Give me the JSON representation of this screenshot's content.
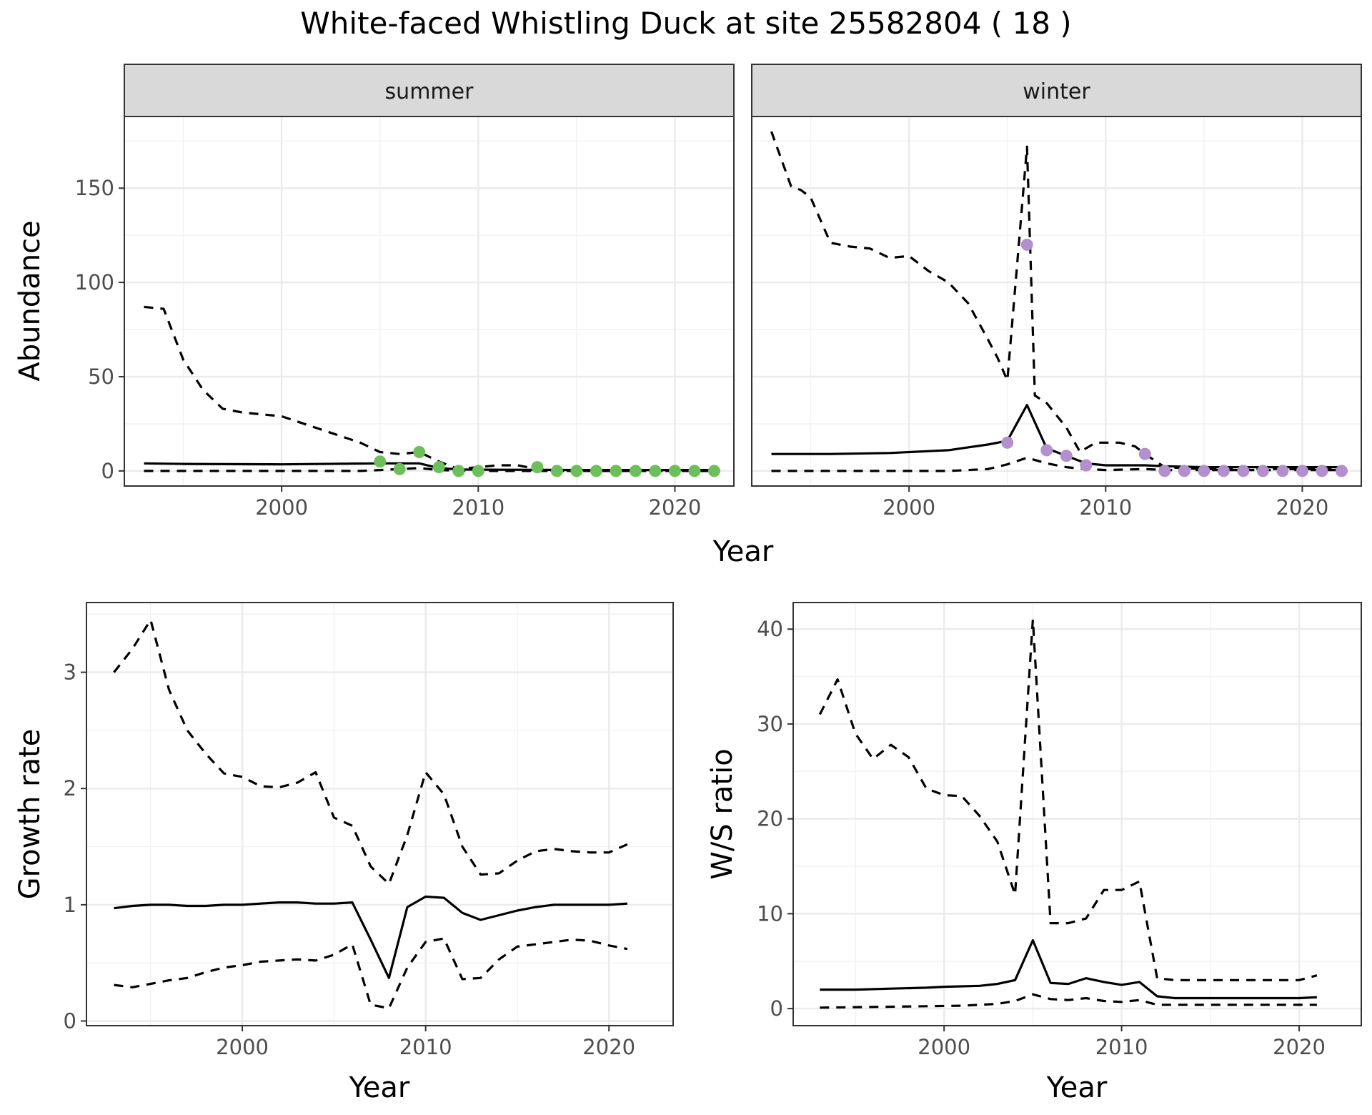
{
  "figure": {
    "title": "White-faced Whistling Duck at site 25582804 ( 18 )"
  },
  "colors": {
    "summer_points": "#6dbf5b",
    "winter_points": "#b38fcd",
    "line": "#000000",
    "strip_fill": "#d9d9d9",
    "grid": "#ebebeb"
  },
  "chart_data": [
    {
      "type": "line",
      "panel": "summer",
      "strip_label": "summer",
      "xlabel": "Year",
      "ylabel": "Abundance",
      "xlim": [
        1992,
        2023
      ],
      "ylim": [
        -8,
        188
      ],
      "xticks": [
        2000,
        2010,
        2020
      ],
      "yticks": [
        0,
        50,
        100,
        150
      ],
      "series": [
        {
          "style": "solid",
          "x": [
            1993,
            1995,
            2000,
            2005,
            2007,
            2008,
            2009,
            2010,
            2013,
            2015,
            2020,
            2022
          ],
          "y": [
            4,
            3.7,
            3.5,
            4,
            4,
            1.5,
            0.8,
            0.7,
            0.6,
            0.5,
            0.5,
            0.5
          ]
        },
        {
          "style": "dashed",
          "x": [
            1993,
            1994,
            1995,
            1996,
            1997,
            1998,
            2000,
            2002,
            2004,
            2005,
            2006,
            2007,
            2008,
            2009,
            2010,
            2011,
            2012,
            2013,
            2014,
            2015,
            2020,
            2022
          ],
          "y": [
            87,
            86,
            59,
            43,
            33,
            31,
            29,
            22,
            15,
            10,
            9,
            10,
            5,
            1,
            2,
            3,
            3,
            1,
            0,
            0,
            0,
            0
          ]
        },
        {
          "style": "dashed",
          "x": [
            1993,
            2000,
            2004,
            2005,
            2006,
            2007,
            2008,
            2009,
            2010,
            2013,
            2015,
            2020,
            2022
          ],
          "y": [
            0,
            0,
            0,
            0.5,
            1,
            1.5,
            0.5,
            0.2,
            0,
            0,
            0,
            0,
            0
          ]
        }
      ],
      "points": {
        "x": [
          2005,
          2006,
          2007,
          2008,
          2009,
          2010,
          2013,
          2014,
          2015,
          2016,
          2017,
          2018,
          2019,
          2020,
          2021,
          2022
        ],
        "y": [
          5,
          1,
          10,
          2,
          0,
          0,
          2,
          0,
          0,
          0,
          0,
          0,
          0,
          0,
          0,
          0
        ]
      }
    },
    {
      "type": "line",
      "panel": "winter",
      "strip_label": "winter",
      "xlabel": "Year",
      "ylabel": "Abundance",
      "xlim": [
        1992,
        2023
      ],
      "ylim": [
        -8,
        188
      ],
      "xticks": [
        2000,
        2010,
        2020
      ],
      "yticks": [
        0,
        50,
        100,
        150
      ],
      "series": [
        {
          "style": "solid",
          "x": [
            1993,
            1996,
            1999,
            2001,
            2002,
            2003,
            2004,
            2005,
            2006,
            2007,
            2008,
            2009,
            2010,
            2011,
            2012,
            2013,
            2015,
            2020,
            2022
          ],
          "y": [
            9,
            9,
            9.5,
            10.5,
            11,
            12.5,
            14,
            16,
            35,
            12,
            8,
            4,
            3,
            3,
            3,
            2.5,
            2,
            2,
            2
          ]
        },
        {
          "style": "dashed",
          "x": [
            1993,
            1994,
            1994.5,
            1995,
            1996,
            1997,
            1998,
            1999,
            2000,
            2001,
            2002,
            2003,
            2004,
            2004.5,
            2005,
            2005.5,
            2006,
            2006.4,
            2007,
            2008,
            2008.7,
            2009,
            2009.5,
            2010,
            2010.7,
            2011.5,
            2012,
            2013,
            2015,
            2020,
            2022
          ],
          "y": [
            180,
            151,
            149,
            145,
            121,
            119,
            118,
            113,
            114,
            106,
            100,
            89,
            70,
            60,
            48,
            110,
            172,
            40,
            36,
            23,
            10,
            12,
            15,
            15,
            15,
            13,
            9,
            2,
            1,
            1,
            1
          ]
        },
        {
          "style": "dashed",
          "x": [
            1993,
            2000,
            2002,
            2003,
            2004,
            2005,
            2006,
            2007,
            2008,
            2009,
            2010,
            2012,
            2013,
            2015,
            2020,
            2022
          ],
          "y": [
            0,
            0,
            0,
            0.5,
            1,
            3.5,
            7,
            4,
            2,
            1,
            0.5,
            1,
            0.5,
            0.5,
            0.5,
            0.5
          ]
        }
      ],
      "points": {
        "x": [
          2005,
          2006,
          2007,
          2008,
          2009,
          2012,
          2013,
          2014,
          2015,
          2016,
          2017,
          2018,
          2019,
          2020,
          2021,
          2022
        ],
        "y": [
          15,
          120,
          11,
          8,
          3,
          9,
          0,
          0,
          0,
          0,
          0,
          0,
          0,
          0,
          0,
          0
        ]
      }
    },
    {
      "type": "line",
      "panel": "growth",
      "xlabel": "Year",
      "ylabel": "Growth rate",
      "xlim": [
        1991.5,
        2023.5
      ],
      "ylim": [
        -0.04,
        3.6
      ],
      "xticks": [
        2000,
        2010,
        2020
      ],
      "yticks": [
        0,
        1,
        2,
        3
      ],
      "series": [
        {
          "style": "solid",
          "x": [
            1993,
            1994,
            1995,
            1996,
            1997,
            1998,
            1999,
            2000,
            2001,
            2002,
            2003,
            2004,
            2005,
            2006,
            2007,
            2008,
            2009,
            2010,
            2011,
            2012,
            2013,
            2014,
            2015,
            2016,
            2017,
            2018,
            2019,
            2020,
            2021
          ],
          "y": [
            0.97,
            0.99,
            1.0,
            1.0,
            0.99,
            0.99,
            1.0,
            1.0,
            1.01,
            1.02,
            1.02,
            1.01,
            1.01,
            1.02,
            0.7,
            0.37,
            0.98,
            1.07,
            1.06,
            0.93,
            0.87,
            0.91,
            0.95,
            0.98,
            1.0,
            1.0,
            1.0,
            1.0,
            1.01
          ]
        },
        {
          "style": "dashed",
          "x": [
            1993,
            1994,
            1995,
            1996,
            1997,
            1998,
            1999,
            2000,
            2001,
            2002,
            2003,
            2004,
            2005,
            2006,
            2007,
            2008,
            2009,
            2010,
            2011,
            2012,
            2013,
            2014,
            2015,
            2016,
            2017,
            2018,
            2019,
            2020,
            2021
          ],
          "y": [
            3.0,
            3.2,
            3.45,
            2.85,
            2.5,
            2.3,
            2.13,
            2.1,
            2.02,
            2.01,
            2.05,
            2.14,
            1.75,
            1.68,
            1.33,
            1.18,
            1.6,
            2.14,
            1.95,
            1.5,
            1.26,
            1.27,
            1.38,
            1.46,
            1.48,
            1.46,
            1.45,
            1.45,
            1.52
          ]
        },
        {
          "style": "dashed",
          "x": [
            1993,
            1994,
            1995,
            1996,
            1997,
            1998,
            1999,
            2000,
            2001,
            2002,
            2003,
            2004,
            2005,
            2006,
            2007,
            2008,
            2009,
            2010,
            2011,
            2012,
            2013,
            2014,
            2015,
            2016,
            2017,
            2018,
            2019,
            2020,
            2021
          ],
          "y": [
            0.31,
            0.29,
            0.32,
            0.35,
            0.37,
            0.42,
            0.46,
            0.48,
            0.51,
            0.52,
            0.53,
            0.52,
            0.57,
            0.66,
            0.14,
            0.11,
            0.46,
            0.68,
            0.71,
            0.36,
            0.37,
            0.53,
            0.64,
            0.66,
            0.68,
            0.7,
            0.69,
            0.65,
            0.62
          ]
        }
      ]
    },
    {
      "type": "line",
      "panel": "ws_ratio",
      "xlabel": "Year",
      "ylabel": "W/S ratio",
      "xlim": [
        1991.5,
        2023.5
      ],
      "ylim": [
        -1.8,
        42.8
      ],
      "xticks": [
        2000,
        2010,
        2020
      ],
      "yticks": [
        0,
        10,
        20,
        30,
        40
      ],
      "series": [
        {
          "style": "solid",
          "x": [
            1993,
            1995,
            1997,
            1999,
            2000,
            2002,
            2003,
            2004,
            2005,
            2006,
            2007,
            2008,
            2009,
            2010,
            2011,
            2012,
            2013,
            2015,
            2020,
            2021
          ],
          "y": [
            2,
            2,
            2.1,
            2.2,
            2.3,
            2.4,
            2.6,
            3,
            7.2,
            2.7,
            2.6,
            3.2,
            2.8,
            2.5,
            2.8,
            1.3,
            1.1,
            1.1,
            1.1,
            1.2
          ]
        },
        {
          "style": "dashed",
          "x": [
            1993,
            1994,
            1995,
            1996,
            1997,
            1998,
            1999,
            2000,
            2001,
            2002,
            2003,
            2004,
            2005,
            2006,
            2007,
            2008,
            2009,
            2010,
            2011,
            2012,
            2013,
            2015,
            2020,
            2021
          ],
          "y": [
            31,
            34.7,
            29,
            26.3,
            27.8,
            26.5,
            23.2,
            22.5,
            22.4,
            20.3,
            17.6,
            12,
            41,
            9,
            9,
            9.5,
            12.5,
            12.5,
            13.4,
            3.2,
            3,
            3,
            3,
            3.5
          ]
        },
        {
          "style": "dashed",
          "x": [
            1993,
            1995,
            1997,
            1999,
            2001,
            2003,
            2004,
            2005,
            2006,
            2007,
            2008,
            2009,
            2010,
            2011,
            2012,
            2013,
            2015,
            2020,
            2021
          ],
          "y": [
            0.1,
            0.15,
            0.2,
            0.25,
            0.3,
            0.5,
            0.8,
            1.5,
            1.0,
            0.9,
            1.1,
            0.8,
            0.7,
            0.9,
            0.4,
            0.4,
            0.4,
            0.4,
            0.4
          ]
        }
      ]
    }
  ]
}
